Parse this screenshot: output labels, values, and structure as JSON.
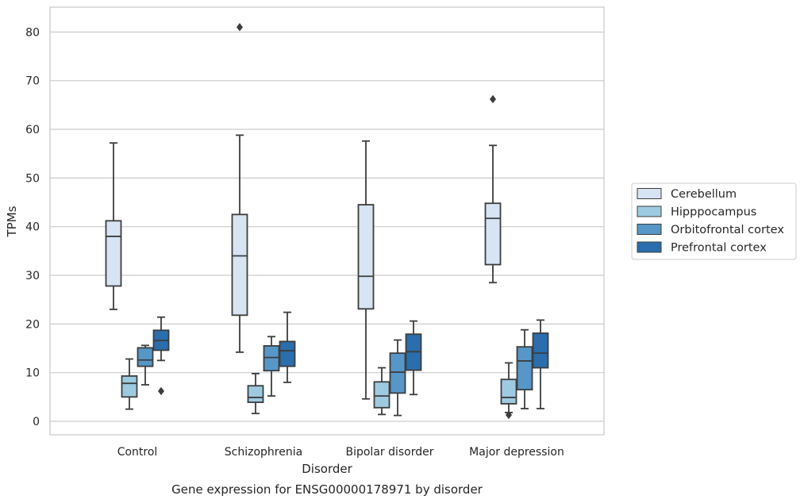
{
  "chart_data": {
    "type": "box",
    "title": "Gene expression for ENSG00000178971 by disorder",
    "xlabel": "Disorder",
    "ylabel": "TPMs",
    "ylim": [
      -2.5,
      85
    ],
    "yticks": [
      0,
      10,
      20,
      30,
      40,
      50,
      60,
      70,
      80
    ],
    "grid": "horizontal",
    "legend_position": "right",
    "categories": [
      "Control",
      "Schizophrenia",
      "Bipolar disorder",
      "Major depression"
    ],
    "series": [
      {
        "name": "Cerebellum",
        "color": "#d6e4f3",
        "boxes": [
          {
            "whisker_low": 23.0,
            "q1": 27.8,
            "median": 38.0,
            "q3": 41.2,
            "whisker_high": 57.2,
            "outliers": []
          },
          {
            "whisker_low": 14.2,
            "q1": 21.8,
            "median": 34.0,
            "q3": 42.5,
            "whisker_high": 58.8,
            "outliers": [
              81.0
            ]
          },
          {
            "whisker_low": 4.6,
            "q1": 23.1,
            "median": 29.8,
            "q3": 44.5,
            "whisker_high": 57.6,
            "outliers": []
          },
          {
            "whisker_low": 28.5,
            "q1": 32.2,
            "median": 41.7,
            "q3": 44.8,
            "whisker_high": 56.7,
            "outliers": [
              66.2
            ]
          }
        ]
      },
      {
        "name": "Hipppocampus",
        "color": "#9ecae1",
        "boxes": [
          {
            "whisker_low": 2.5,
            "q1": 5.0,
            "median": 7.8,
            "q3": 9.3,
            "whisker_high": 12.8,
            "outliers": []
          },
          {
            "whisker_low": 1.6,
            "q1": 3.9,
            "median": 4.9,
            "q3": 7.3,
            "whisker_high": 9.8,
            "outliers": []
          },
          {
            "whisker_low": 1.4,
            "q1": 2.8,
            "median": 5.2,
            "q3": 8.1,
            "whisker_high": 11.0,
            "outliers": []
          },
          {
            "whisker_low": 1.8,
            "q1": 3.6,
            "median": 4.9,
            "q3": 8.6,
            "whisker_high": 12.0,
            "outliers": [
              1.3
            ]
          }
        ]
      },
      {
        "name": "Orbitofrontal cortex",
        "color": "#5697c8",
        "boxes": [
          {
            "whisker_low": 7.5,
            "q1": 11.3,
            "median": 12.6,
            "q3": 15.1,
            "whisker_high": 15.6,
            "outliers": []
          },
          {
            "whisker_low": 5.2,
            "q1": 10.4,
            "median": 13.1,
            "q3": 15.5,
            "whisker_high": 17.4,
            "outliers": []
          },
          {
            "whisker_low": 1.2,
            "q1": 5.8,
            "median": 10.1,
            "q3": 14.0,
            "whisker_high": 16.7,
            "outliers": []
          },
          {
            "whisker_low": 2.6,
            "q1": 6.5,
            "median": 12.4,
            "q3": 15.3,
            "whisker_high": 18.8,
            "outliers": []
          }
        ]
      },
      {
        "name": "Prefrontal cortex",
        "color": "#2a6ead",
        "boxes": [
          {
            "whisker_low": 12.5,
            "q1": 14.6,
            "median": 16.6,
            "q3": 18.7,
            "whisker_high": 21.4,
            "outliers": [
              6.2
            ]
          },
          {
            "whisker_low": 8.0,
            "q1": 11.3,
            "median": 14.5,
            "q3": 16.4,
            "whisker_high": 22.4,
            "outliers": []
          },
          {
            "whisker_low": 5.5,
            "q1": 10.5,
            "median": 14.3,
            "q3": 17.9,
            "whisker_high": 20.6,
            "outliers": []
          },
          {
            "whisker_low": 2.6,
            "q1": 11.0,
            "median": 14.0,
            "q3": 18.1,
            "whisker_high": 20.8,
            "outliers": []
          }
        ]
      }
    ]
  }
}
